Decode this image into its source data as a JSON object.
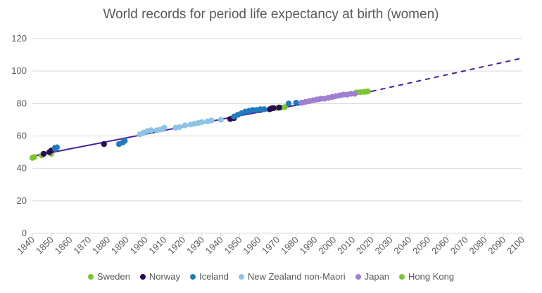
{
  "chart_data": {
    "type": "scatter",
    "title": "World records for period life expectancy at birth (women)",
    "xlabel": "",
    "ylabel": "",
    "xlim": [
      1840,
      2100
    ],
    "ylim": [
      0,
      120
    ],
    "x_ticks": [
      "1840",
      "1850",
      "1860",
      "1870",
      "1880",
      "1890",
      "1900",
      "1910",
      "1920",
      "1930",
      "1940",
      "1950",
      "1960",
      "1970",
      "1980",
      "1990",
      "2000",
      "2010",
      "2020",
      "2030",
      "2040",
      "2050",
      "2060",
      "2070",
      "2080",
      "2090",
      "2100"
    ],
    "y_ticks": [
      "0",
      "20",
      "40",
      "60",
      "80",
      "100",
      "120"
    ],
    "grid": "horizontal",
    "legend_position": "bottom",
    "series": [
      {
        "name": "Sweden",
        "color": "#7dc52e",
        "points": [
          [
            1840,
            46.5
          ],
          [
            1841,
            47
          ],
          [
            1845,
            48
          ],
          [
            1850,
            49
          ],
          [
            1970,
            77.2
          ],
          [
            1972,
            77.5
          ],
          [
            1974,
            77.8
          ],
          [
            2012,
            86.8
          ],
          [
            2014,
            87
          ],
          [
            2016,
            87.2
          ],
          [
            2017,
            87.3
          ],
          [
            2018,
            87.5
          ]
        ]
      },
      {
        "name": "Norway",
        "color": "#2a0c55",
        "points": [
          [
            1846,
            49
          ],
          [
            1849,
            50
          ],
          [
            1850,
            51
          ],
          [
            1852,
            52.5
          ],
          [
            1878,
            55
          ],
          [
            1945,
            70.5
          ],
          [
            1947,
            71
          ],
          [
            1961,
            76
          ],
          [
            1966,
            76.5
          ],
          [
            1967,
            77
          ],
          [
            1968,
            77.2
          ],
          [
            1971,
            77.5
          ]
        ]
      },
      {
        "name": "Iceland",
        "color": "#1f7bbd",
        "points": [
          [
            1852,
            52
          ],
          [
            1853,
            53
          ],
          [
            1886,
            55
          ],
          [
            1888,
            56
          ],
          [
            1889,
            57
          ],
          [
            1947,
            72
          ],
          [
            1949,
            73
          ],
          [
            1951,
            74
          ],
          [
            1953,
            75
          ],
          [
            1955,
            75.5
          ],
          [
            1957,
            76
          ],
          [
            1959,
            76
          ],
          [
            1961,
            76.5
          ],
          [
            1963,
            76.5
          ],
          [
            1976,
            80
          ],
          [
            1980,
            80.5
          ],
          [
            1983,
            80.5
          ]
        ]
      },
      {
        "name": "New Zealand non-Maori",
        "color": "#8cc4e6",
        "points": [
          [
            1897,
            61
          ],
          [
            1899,
            62
          ],
          [
            1901,
            63
          ],
          [
            1903,
            63.5
          ],
          [
            1906,
            63.5
          ],
          [
            1908,
            64
          ],
          [
            1910,
            65
          ],
          [
            1916,
            65
          ],
          [
            1918,
            65.5
          ],
          [
            1921,
            66.5
          ],
          [
            1924,
            67
          ],
          [
            1926,
            67.5
          ],
          [
            1928,
            68
          ],
          [
            1930,
            68.5
          ],
          [
            1933,
            69
          ],
          [
            1935,
            69.5
          ],
          [
            1940,
            70
          ]
        ]
      },
      {
        "name": "Japan",
        "color": "#a07fd1",
        "points": [
          [
            1983,
            80.5
          ],
          [
            1985,
            81
          ],
          [
            1987,
            81.5
          ],
          [
            1989,
            82
          ],
          [
            1991,
            82.5
          ],
          [
            1993,
            83
          ],
          [
            1995,
            83
          ],
          [
            1997,
            83.5
          ],
          [
            1999,
            84
          ],
          [
            2001,
            84.5
          ],
          [
            2003,
            85
          ],
          [
            2005,
            85.5
          ],
          [
            2007,
            85.5
          ],
          [
            2009,
            86
          ],
          [
            2011,
            86
          ]
        ]
      },
      {
        "name": "Hong Kong",
        "color": "#7dc52e",
        "points": []
      }
    ],
    "trend_solid": [
      [
        1840,
        47.5
      ],
      [
        1950,
        72.5
      ],
      [
        2020,
        87.5
      ]
    ],
    "trend_dashed": [
      [
        2020,
        87.5
      ],
      [
        2100,
        108
      ]
    ],
    "trend_color": "#4b2096"
  }
}
